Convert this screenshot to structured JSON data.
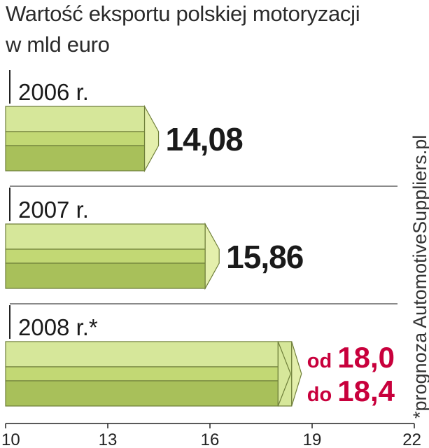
{
  "chart_data": {
    "type": "bar",
    "orientation": "horizontal",
    "title": "Wartość eksportu polskiej motoryzacji",
    "subtitle": "w mld euro",
    "footnote": "*prognoza AutomotiveSuppliers.pl",
    "categories": [
      "2006 r.",
      "2007 r.",
      "2008 r.*"
    ],
    "values": [
      14.08,
      15.86,
      18.4
    ],
    "range_low": [
      null,
      null,
      18.0
    ],
    "value_labels": [
      "14,08",
      "15,86",
      null
    ],
    "range_labels": [
      null,
      null,
      {
        "low_prefix": "od",
        "low": "18,0",
        "high_prefix": "do",
        "high": "18,4"
      }
    ],
    "xlim": [
      10,
      22
    ],
    "xticks": [
      "10",
      "13",
      "16",
      "19",
      "22"
    ],
    "grid": false,
    "colors": {
      "bar_front": "#c2d874",
      "bar_top": "#d6e79a",
      "bar_bottom": "#a8c05a",
      "bar_cap": "#e4efac",
      "forecast_text": "#c8003c",
      "text": "#1a1a1a"
    }
  }
}
